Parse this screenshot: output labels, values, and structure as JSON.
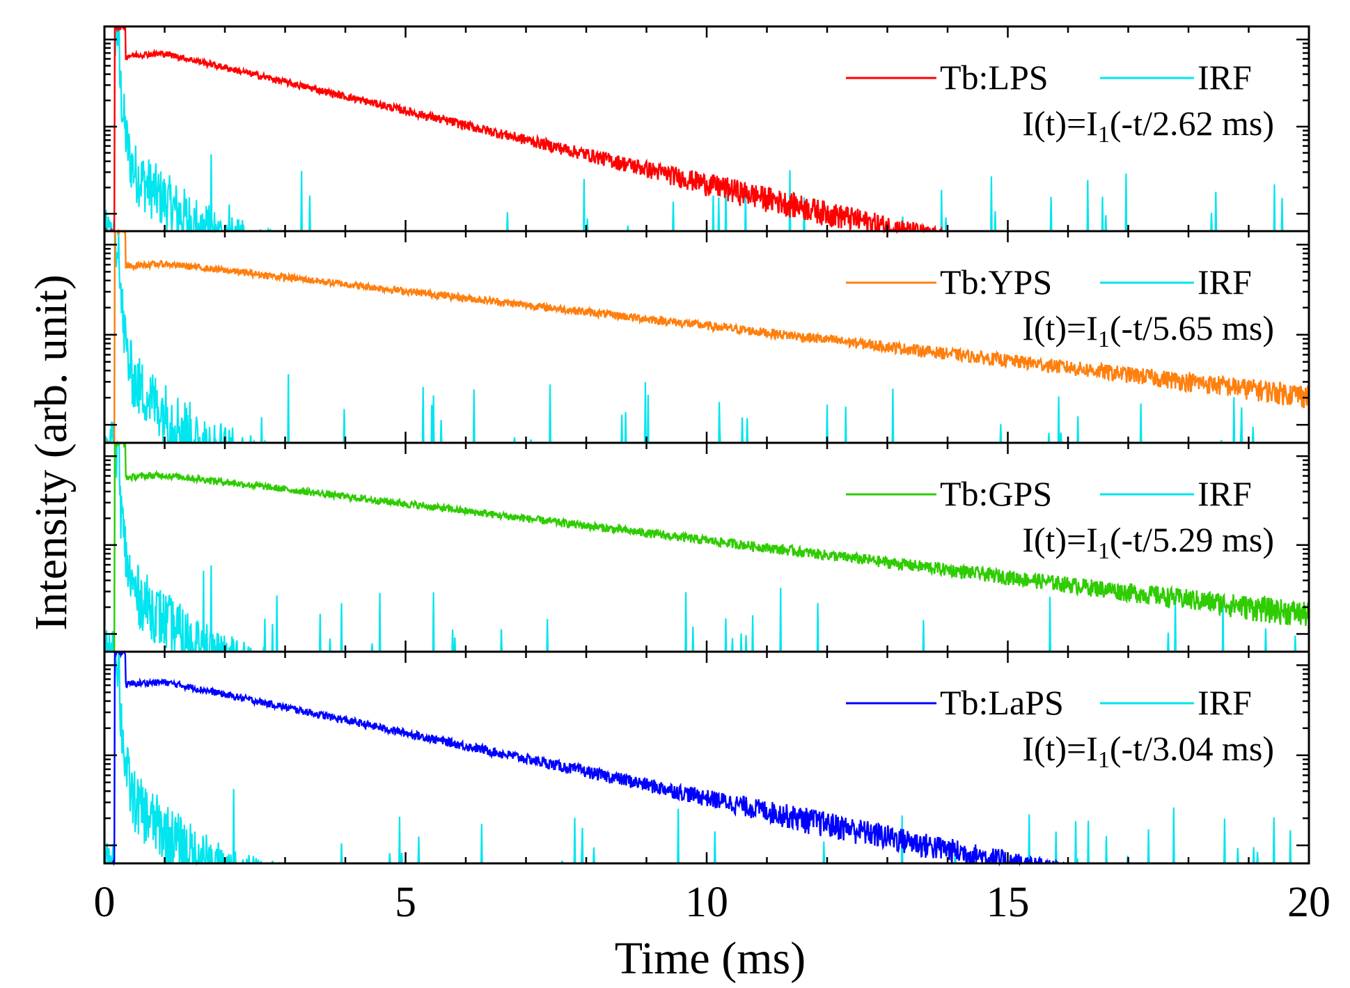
{
  "chart_data": {
    "type": "line",
    "title": "",
    "xlabel": "Time (ms)",
    "ylabel": "Intensity (arb. unit)",
    "xlim": [
      0,
      20
    ],
    "x_ticks": [
      "0",
      "5",
      "10",
      "15",
      "20"
    ],
    "y_scale": "log",
    "y_ticks_labeled": false,
    "panels": [
      {
        "sample": "Tb:LPS",
        "color": "#ff0000",
        "reference": "IRF",
        "reference_color": "#00e5ee",
        "equation_prefix": "I(t)=I",
        "equation_subscript": "1",
        "equation_suffix": "(-t/2.62 ms)",
        "lifetime_ms": 2.62,
        "peak_time_ms": 0.2,
        "plateau_start_ms": 0.35,
        "plateau_intensity": 0.7
      },
      {
        "sample": "Tb:YPS",
        "color": "#ff7f0e",
        "reference": "IRF",
        "reference_color": "#00e5ee",
        "equation_prefix": "I(t)=I",
        "equation_subscript": "1",
        "equation_suffix": "(-t/5.65 ms)",
        "lifetime_ms": 5.65,
        "peak_time_ms": 0.2,
        "plateau_start_ms": 0.35,
        "plateau_intensity": 0.62
      },
      {
        "sample": "Tb:GPS",
        "color": "#2ecc00",
        "reference": "IRF",
        "reference_color": "#00e5ee",
        "equation_prefix": "I(t)=I",
        "equation_subscript": "1",
        "equation_suffix": "(-t/5.29 ms)",
        "lifetime_ms": 5.29,
        "peak_time_ms": 0.2,
        "plateau_start_ms": 0.35,
        "plateau_intensity": 0.62
      },
      {
        "sample": "Tb:LaPS",
        "color": "#0000ff",
        "reference": "IRF",
        "reference_color": "#00e5ee",
        "equation_prefix": "I(t)=I",
        "equation_subscript": "1",
        "equation_suffix": "(-t/3.04 ms)",
        "lifetime_ms": 3.04,
        "peak_time_ms": 0.2,
        "plateau_start_ms": 0.35,
        "plateau_intensity": 0.66
      }
    ]
  }
}
